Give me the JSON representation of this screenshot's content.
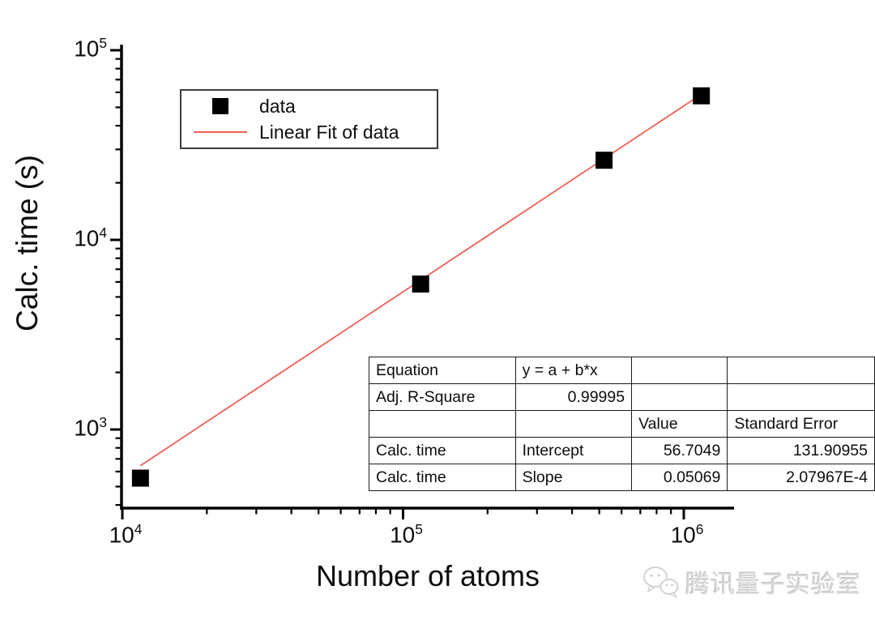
{
  "page": {
    "background": "#ffffff"
  },
  "chart_data": {
    "type": "scatter",
    "title": "",
    "xlabel": "Number of atoms",
    "ylabel": "Calc. time (s)",
    "x_scale": "log",
    "y_scale": "log",
    "xlim": [
      10000,
      1510000
    ],
    "ylim": [
      385,
      107000
    ],
    "x_major_ticks": [
      10000,
      100000,
      1000000
    ],
    "y_major_ticks": [
      1000,
      10000,
      100000
    ],
    "grid": false,
    "axis_color": "#000000",
    "series": [
      {
        "name": "data",
        "type": "scatter",
        "marker": "square",
        "marker_size": 21,
        "color": "#000000",
        "points": [
          {
            "x": 11600,
            "y": 554
          },
          {
            "x": 115500,
            "y": 5850
          },
          {
            "x": 520000,
            "y": 26300
          },
          {
            "x": 1155000,
            "y": 57500
          }
        ]
      },
      {
        "name": "Linear Fit of data",
        "type": "line",
        "color": "#ee5f55",
        "fit": {
          "equation": "y = a + b*x",
          "intercept": 56.7049,
          "slope": 0.05069,
          "x_range": [
            11600,
            1130000
          ]
        }
      }
    ],
    "legend": {
      "position": "top-left",
      "items": [
        "data",
        "Linear Fit of data"
      ]
    }
  },
  "stats_table": {
    "rows": [
      [
        "Equation",
        "y = a + b*x",
        "",
        ""
      ],
      [
        "Adj. R-Square",
        "0.99995",
        "",
        ""
      ],
      [
        "",
        "",
        "Value",
        "Standard Error"
      ],
      [
        "Calc. time",
        "Intercept",
        "56.7049",
        "131.90955"
      ],
      [
        "Calc. time",
        "Slope",
        "0.05069",
        "2.07967E-4"
      ]
    ]
  },
  "watermark": {
    "icon": "wechat-icon",
    "text": "腾讯量子实验室",
    "color": "#d7d7d7"
  }
}
